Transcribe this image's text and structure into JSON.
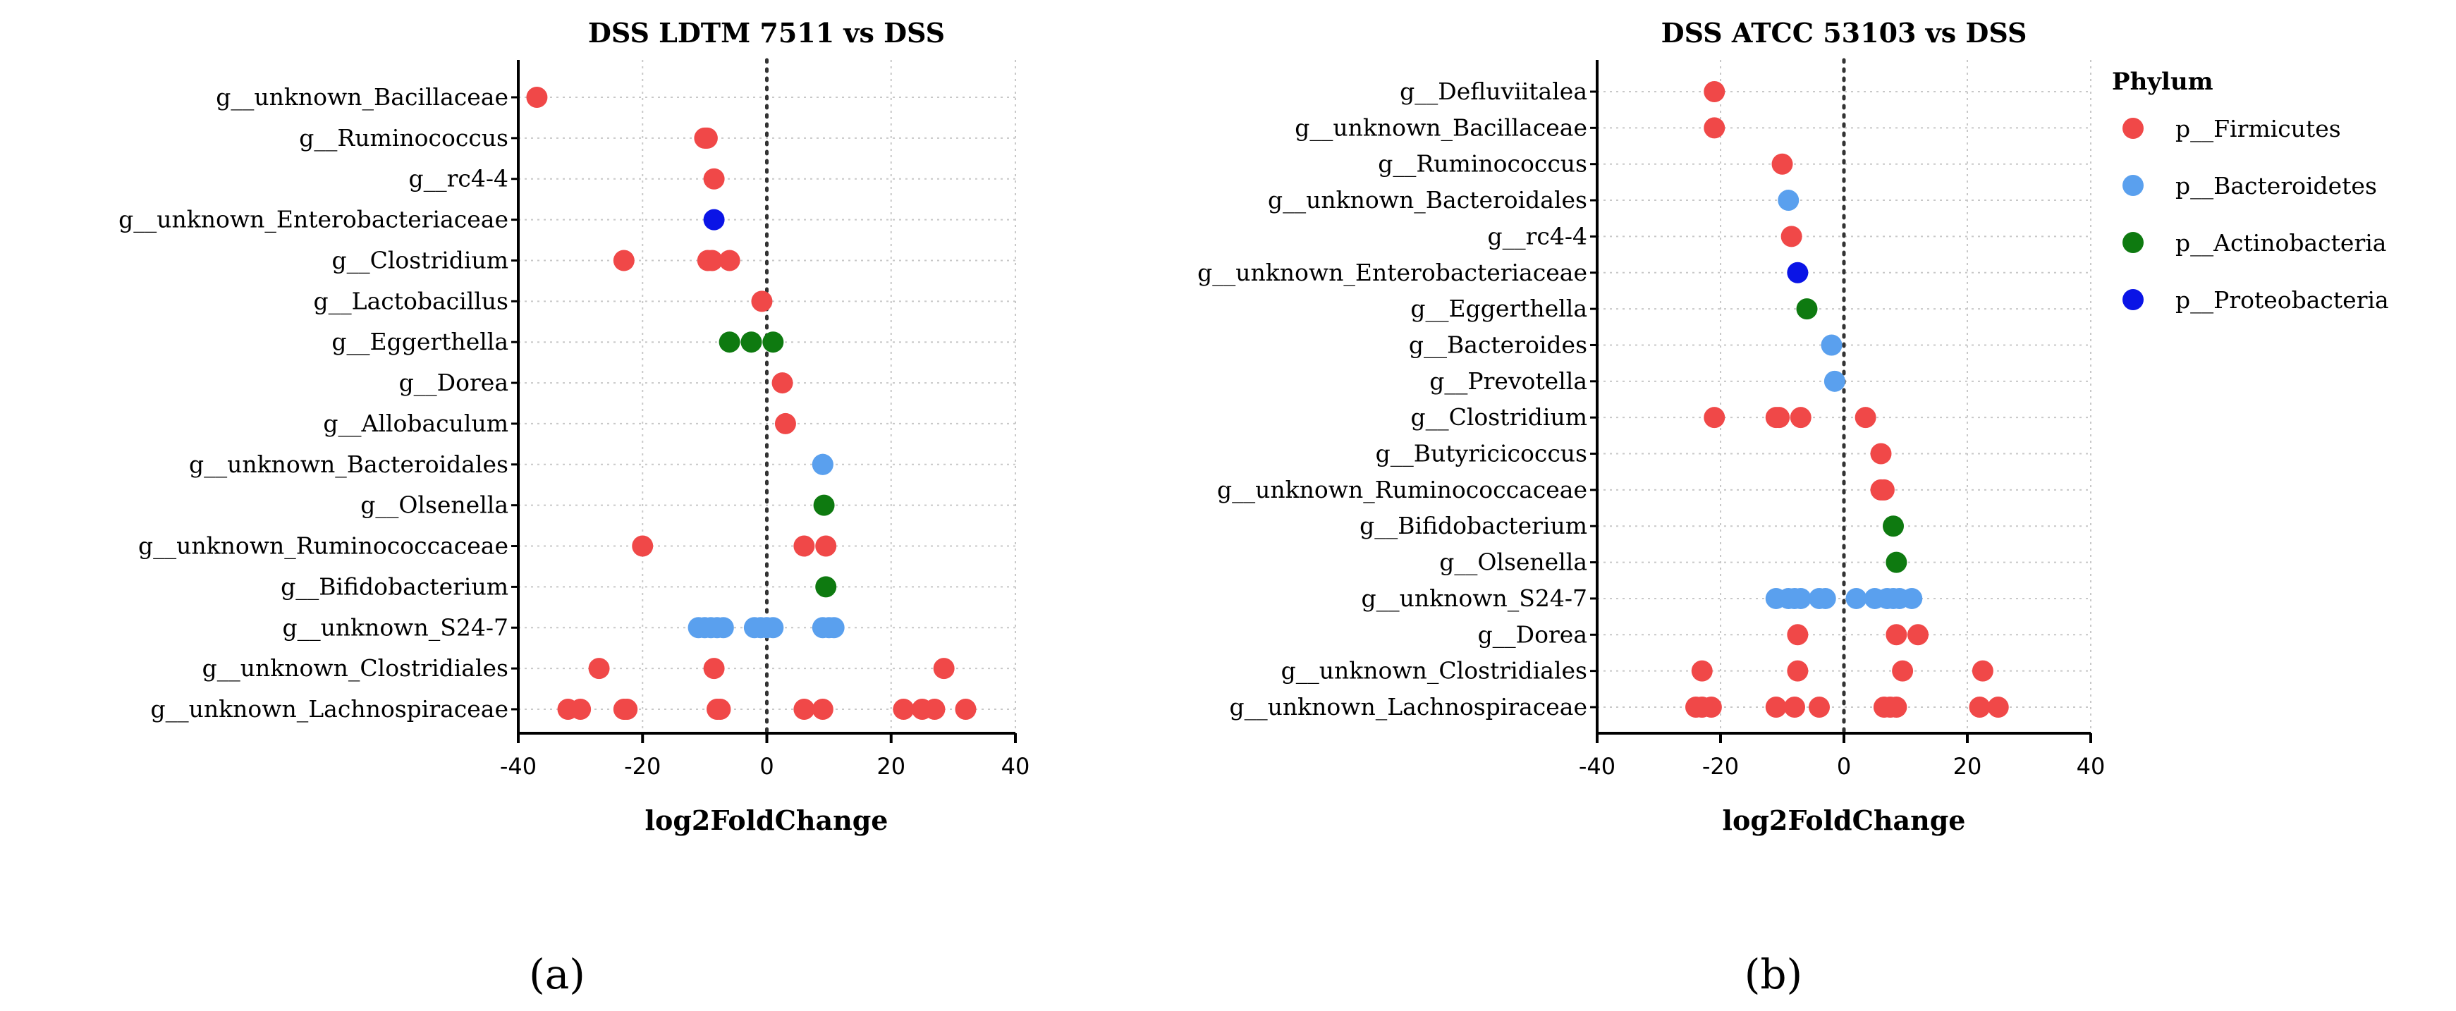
{
  "colors": {
    "p__Firmicutes": "#f04848",
    "p__Bacteroidetes": "#5aa0ee",
    "p__Actinobacteria": "#0e7a10",
    "p__Proteobacteria": "#0a14e6"
  },
  "legend": {
    "title": "Phylum",
    "items": [
      "p__Firmicutes",
      "p__Bacteroidetes",
      "p__Actinobacteria",
      "p__Proteobacteria"
    ]
  },
  "chart_data": [
    {
      "type": "scatter",
      "panel_label": "(a)",
      "title": "DSS LDTM 7511 vs DSS",
      "xlabel": "log2FoldChange",
      "xlim": [
        -40,
        40
      ],
      "xticks": [
        "-40",
        "-20",
        "0",
        "20",
        "40"
      ],
      "categories": [
        "g__unknown_Bacillaceae",
        "g__Ruminococcus",
        "g__rc4-4",
        "g__unknown_Enterobacteriaceae",
        "g__Clostridium",
        "g__Lactobacillus",
        "g__Eggerthella",
        "g__Dorea",
        "g__Allobaculum",
        "g__unknown_Bacteroidales",
        "g__Olsenella",
        "g__unknown_Ruminococcaceae",
        "g__Bifidobacterium",
        "g__unknown_S24-7",
        "g__unknown_Clostridiales",
        "g__unknown_Lachnospiraceae"
      ],
      "points": [
        {
          "category": "g__unknown_Bacillaceae",
          "phylum": "p__Firmicutes",
          "values": [
            -37
          ]
        },
        {
          "category": "g__Ruminococcus",
          "phylum": "p__Firmicutes",
          "values": [
            -10,
            -9.6,
            -9.8
          ]
        },
        {
          "category": "g__rc4-4",
          "phylum": "p__Firmicutes",
          "values": [
            -8.5
          ]
        },
        {
          "category": "g__unknown_Enterobacteriaceae",
          "phylum": "p__Proteobacteria",
          "values": [
            -8.5
          ]
        },
        {
          "category": "g__Clostridium",
          "phylum": "p__Firmicutes",
          "values": [
            -23,
            -9.5,
            -8.8,
            -6
          ]
        },
        {
          "category": "g__Lactobacillus",
          "phylum": "p__Firmicutes",
          "values": [
            -0.8
          ]
        },
        {
          "category": "g__Eggerthella",
          "phylum": "p__Actinobacteria",
          "values": [
            -6,
            -2.5,
            1
          ]
        },
        {
          "category": "g__Dorea",
          "phylum": "p__Firmicutes",
          "values": [
            2.5
          ]
        },
        {
          "category": "g__Allobaculum",
          "phylum": "p__Firmicutes",
          "values": [
            3
          ]
        },
        {
          "category": "g__unknown_Bacteroidales",
          "phylum": "p__Bacteroidetes",
          "values": [
            9,
            9
          ]
        },
        {
          "category": "g__Olsenella",
          "phylum": "p__Actinobacteria",
          "values": [
            9.2
          ]
        },
        {
          "category": "g__unknown_Ruminococcaceae",
          "phylum": "p__Firmicutes",
          "values": [
            -20,
            6,
            9.5
          ]
        },
        {
          "category": "g__Bifidobacterium",
          "phylum": "p__Actinobacteria",
          "values": [
            9.5
          ]
        },
        {
          "category": "g__unknown_S24-7",
          "phylum": "p__Bacteroidetes",
          "values": [
            -11,
            -10,
            -9,
            -8,
            -7,
            -2,
            -1,
            0,
            1,
            9,
            10,
            10.8
          ]
        },
        {
          "category": "g__unknown_Clostridiales",
          "phylum": "p__Firmicutes",
          "values": [
            -27,
            -8.5,
            28.5
          ]
        },
        {
          "category": "g__unknown_Lachnospiraceae",
          "phylum": "p__Firmicutes",
          "values": [
            -32,
            -30,
            -23,
            -22.5,
            -8,
            -7.5,
            6,
            9,
            22,
            25,
            27,
            32
          ]
        }
      ]
    },
    {
      "type": "scatter",
      "panel_label": "(b)",
      "title": "DSS ATCC 53103 vs DSS",
      "xlabel": "log2FoldChange",
      "xlim": [
        -40,
        40
      ],
      "xticks": [
        "-40",
        "-20",
        "0",
        "20",
        "40"
      ],
      "categories": [
        "g__Defluviitalea",
        "g__unknown_Bacillaceae",
        "g__Ruminococcus",
        "g__unknown_Bacteroidales",
        "g__rc4-4",
        "g__unknown_Enterobacteriaceae",
        "g__Eggerthella",
        "g__Bacteroides",
        "g__Prevotella",
        "g__Clostridium",
        "g__Butyricicoccus",
        "g__unknown_Ruminococcaceae",
        "g__Bifidobacterium",
        "g__Olsenella",
        "g__unknown_S24-7",
        "g__Dorea",
        "g__unknown_Clostridiales",
        "g__unknown_Lachnospiraceae"
      ],
      "points": [
        {
          "category": "g__Defluviitalea",
          "phylum": "p__Firmicutes",
          "values": [
            -21
          ]
        },
        {
          "category": "g__unknown_Bacillaceae",
          "phylum": "p__Firmicutes",
          "values": [
            -21
          ]
        },
        {
          "category": "g__Ruminococcus",
          "phylum": "p__Firmicutes",
          "values": [
            -10
          ]
        },
        {
          "category": "g__unknown_Bacteroidales",
          "phylum": "p__Bacteroidetes",
          "values": [
            -9
          ]
        },
        {
          "category": "g__rc4-4",
          "phylum": "p__Firmicutes",
          "values": [
            -8.5
          ]
        },
        {
          "category": "g__unknown_Enterobacteriaceae",
          "phylum": "p__Proteobacteria",
          "values": [
            -7.5
          ]
        },
        {
          "category": "g__Eggerthella",
          "phylum": "p__Actinobacteria",
          "values": [
            -6
          ]
        },
        {
          "category": "g__Bacteroides",
          "phylum": "p__Bacteroidetes",
          "values": [
            -2
          ]
        },
        {
          "category": "g__Prevotella",
          "phylum": "p__Bacteroidetes",
          "values": [
            -1.5
          ]
        },
        {
          "category": "g__Clostridium",
          "phylum": "p__Firmicutes",
          "values": [
            -21,
            -11,
            -10.5,
            -7,
            3.5
          ]
        },
        {
          "category": "g__Butyricicoccus",
          "phylum": "p__Firmicutes",
          "values": [
            6
          ]
        },
        {
          "category": "g__unknown_Ruminococcaceae",
          "phylum": "p__Firmicutes",
          "values": [
            6,
            6.5
          ]
        },
        {
          "category": "g__Bifidobacterium",
          "phylum": "p__Actinobacteria",
          "values": [
            8
          ]
        },
        {
          "category": "g__Olsenella",
          "phylum": "p__Actinobacteria",
          "values": [
            8.5
          ]
        },
        {
          "category": "g__unknown_S24-7",
          "phylum": "p__Bacteroidetes",
          "values": [
            -11,
            -9,
            -8,
            -7,
            -4,
            -3,
            2,
            5,
            7,
            8,
            9,
            11
          ]
        },
        {
          "category": "g__Dorea",
          "phylum": "p__Firmicutes",
          "values": [
            -7.5,
            8.5,
            12
          ]
        },
        {
          "category": "g__unknown_Clostridiales",
          "phylum": "p__Firmicutes",
          "values": [
            -23,
            -7.5,
            9.5,
            22.5
          ]
        },
        {
          "category": "g__unknown_Lachnospiraceae",
          "phylum": "p__Firmicutes",
          "values": [
            -24,
            -23,
            -21.5,
            -11,
            -8,
            -4,
            6.5,
            7.5,
            8.5,
            22,
            25
          ]
        }
      ]
    }
  ]
}
